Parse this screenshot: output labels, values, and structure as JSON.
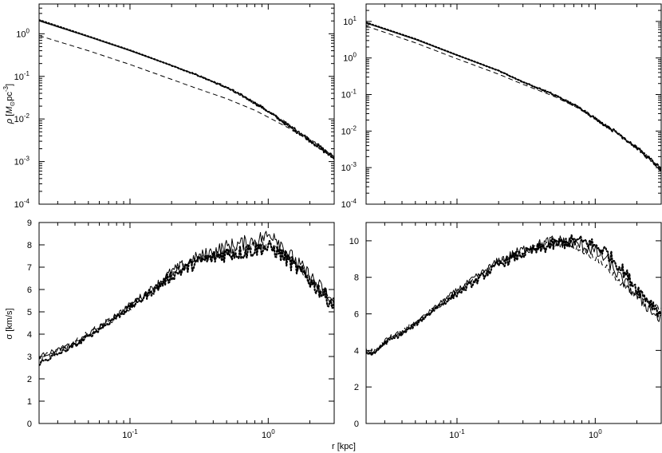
{
  "figure": {
    "xlabel": "r [kpc]"
  },
  "chart_data": [
    {
      "panel": "top-left",
      "type": "line",
      "xscale": "log",
      "yscale": "log",
      "xlim": [
        0.022,
        3.0
      ],
      "ylim": [
        0.0001,
        5
      ],
      "ylabel": "ρ [M⊙pc⁻³]",
      "ylabel_parts": {
        "rho": "ρ",
        "open": " [",
        "M": "M",
        "sun": "⊙",
        "pc": "pc",
        "exp": "-3",
        "close": "]"
      },
      "y_ticks": [
        {
          "value": 1,
          "base": "10",
          "exp": "0"
        },
        {
          "value": 0.1,
          "base": "10",
          "exp": "-1"
        },
        {
          "value": 0.01,
          "base": "10",
          "exp": "-2"
        },
        {
          "value": 0.001,
          "base": "10",
          "exp": "-3"
        },
        {
          "value": 0.0001,
          "base": "10",
          "exp": "-4"
        }
      ],
      "x_ticks": [],
      "series": [
        {
          "style": "solid",
          "x": [
            0.022,
            0.05,
            0.1,
            0.2,
            0.3,
            0.5,
            0.8,
            1.0,
            1.5,
            2.0,
            3.0
          ],
          "y": [
            2.0,
            0.85,
            0.4,
            0.18,
            0.11,
            0.055,
            0.024,
            0.015,
            0.006,
            0.0032,
            0.0012
          ]
        },
        {
          "style": "dotted",
          "x": [
            0.022,
            0.05,
            0.1,
            0.2,
            0.3,
            0.5,
            0.8,
            1.0,
            1.5,
            2.0,
            3.0
          ],
          "y": [
            2.1,
            0.87,
            0.41,
            0.18,
            0.11,
            0.055,
            0.024,
            0.015,
            0.006,
            0.0032,
            0.0012
          ]
        },
        {
          "style": "dashed",
          "x": [
            0.022,
            0.05,
            0.1,
            0.2,
            0.3,
            0.5,
            0.8,
            1.0,
            1.5,
            2.0,
            3.0
          ],
          "y": [
            0.9,
            0.4,
            0.19,
            0.085,
            0.053,
            0.03,
            0.016,
            0.011,
            0.0055,
            0.003,
            0.0012
          ]
        }
      ]
    },
    {
      "panel": "top-right",
      "type": "line",
      "xscale": "log",
      "yscale": "log",
      "xlim": [
        0.022,
        3.0
      ],
      "ylim": [
        0.0001,
        30
      ],
      "ylabel": "",
      "y_ticks": [
        {
          "value": 10,
          "base": "10",
          "exp": "1"
        },
        {
          "value": 1,
          "base": "10",
          "exp": "0"
        },
        {
          "value": 0.1,
          "base": "10",
          "exp": "-1"
        },
        {
          "value": 0.01,
          "base": "10",
          "exp": "-2"
        },
        {
          "value": 0.001,
          "base": "10",
          "exp": "-3"
        },
        {
          "value": 0.0001,
          "base": "10",
          "exp": "-4"
        }
      ],
      "x_ticks": [],
      "series": [
        {
          "style": "solid",
          "x": [
            0.022,
            0.05,
            0.1,
            0.2,
            0.3,
            0.5,
            0.8,
            1.0,
            1.5,
            2.0,
            3.0
          ],
          "y": [
            9.0,
            3.2,
            1.2,
            0.45,
            0.22,
            0.1,
            0.04,
            0.022,
            0.008,
            0.0035,
            0.0009
          ]
        },
        {
          "style": "dotted",
          "x": [
            0.022,
            0.05,
            0.1,
            0.2,
            0.3,
            0.5,
            0.8,
            1.0,
            1.5,
            2.0,
            3.0
          ],
          "y": [
            9.3,
            3.3,
            1.2,
            0.45,
            0.22,
            0.1,
            0.04,
            0.022,
            0.008,
            0.0035,
            0.0009
          ]
        },
        {
          "style": "dashed",
          "x": [
            0.022,
            0.05,
            0.1,
            0.2,
            0.3,
            0.5,
            0.8,
            1.0,
            1.5,
            2.0,
            3.0
          ],
          "y": [
            7.5,
            2.6,
            0.95,
            0.36,
            0.19,
            0.09,
            0.038,
            0.021,
            0.008,
            0.0035,
            0.0009
          ]
        }
      ]
    },
    {
      "panel": "bottom-left",
      "type": "line",
      "xscale": "log",
      "yscale": "linear",
      "xlim": [
        0.022,
        3.0
      ],
      "ylim": [
        0,
        9
      ],
      "ylabel": "σ [km/s]",
      "y_ticks": [
        {
          "value": 0,
          "label": "0"
        },
        {
          "value": 1,
          "label": "1"
        },
        {
          "value": 2,
          "label": "2"
        },
        {
          "value": 3,
          "label": "3"
        },
        {
          "value": 4,
          "label": "4"
        },
        {
          "value": 5,
          "label": "5"
        },
        {
          "value": 6,
          "label": "6"
        },
        {
          "value": 7,
          "label": "7"
        },
        {
          "value": 8,
          "label": "8"
        },
        {
          "value": 9,
          "label": "9"
        }
      ],
      "x_ticks": [
        {
          "value": 0.1,
          "base": "10",
          "exp": "-1"
        },
        {
          "value": 1,
          "base": "10",
          "exp": "0"
        }
      ],
      "series": [
        {
          "style": "solid",
          "x": [
            0.022,
            0.03,
            0.04,
            0.05,
            0.07,
            0.1,
            0.15,
            0.2,
            0.3,
            0.5,
            0.7,
            0.9,
            1.1,
            1.4,
            2.0,
            3.0
          ],
          "y": [
            3.0,
            3.3,
            3.6,
            4.0,
            4.6,
            5.3,
            6.1,
            6.8,
            7.4,
            7.9,
            8.1,
            8.3,
            8.5,
            7.6,
            6.6,
            5.4
          ]
        },
        {
          "style": "dotted",
          "x": [
            0.022,
            0.03,
            0.04,
            0.05,
            0.07,
            0.1,
            0.15,
            0.2,
            0.3,
            0.5,
            0.7,
            0.9,
            1.1,
            1.4,
            2.0,
            3.0
          ],
          "y": [
            2.7,
            3.1,
            3.5,
            3.9,
            4.5,
            5.2,
            6.0,
            6.6,
            7.2,
            7.6,
            7.7,
            7.9,
            7.8,
            7.3,
            6.4,
            5.3
          ]
        },
        {
          "style": "dashed",
          "x": [
            0.022,
            0.03,
            0.04,
            0.05,
            0.07,
            0.1,
            0.15,
            0.2,
            0.3,
            0.5,
            0.7,
            0.9,
            1.1,
            1.4,
            2.0,
            3.0
          ],
          "y": [
            2.9,
            3.2,
            3.6,
            4.0,
            4.6,
            5.2,
            6.0,
            6.7,
            7.3,
            7.7,
            7.9,
            8.0,
            7.9,
            7.4,
            6.5,
            5.3
          ]
        }
      ]
    },
    {
      "panel": "bottom-right",
      "type": "line",
      "xscale": "log",
      "yscale": "linear",
      "xlim": [
        0.022,
        3.0
      ],
      "ylim": [
        0,
        11
      ],
      "ylabel": "",
      "y_ticks": [
        {
          "value": 0,
          "label": "0"
        },
        {
          "value": 2,
          "label": "2"
        },
        {
          "value": 4,
          "label": "4"
        },
        {
          "value": 6,
          "label": "6"
        },
        {
          "value": 8,
          "label": "8"
        },
        {
          "value": 10,
          "label": "10"
        }
      ],
      "x_ticks": [
        {
          "value": 0.1,
          "base": "10",
          "exp": "-1"
        },
        {
          "value": 1,
          "base": "10",
          "exp": "0"
        }
      ],
      "series": [
        {
          "style": "solid",
          "x": [
            0.022,
            0.025,
            0.03,
            0.04,
            0.05,
            0.07,
            0.1,
            0.15,
            0.2,
            0.3,
            0.5,
            0.7,
            0.9,
            1.2,
            1.5,
            2.0,
            3.0
          ],
          "y": [
            3.9,
            3.8,
            4.5,
            5.0,
            5.5,
            6.4,
            7.3,
            8.2,
            8.9,
            9.5,
            10.0,
            9.9,
            9.6,
            9.0,
            8.0,
            7.0,
            5.6
          ]
        },
        {
          "style": "dotted",
          "x": [
            0.022,
            0.025,
            0.03,
            0.04,
            0.05,
            0.07,
            0.1,
            0.15,
            0.2,
            0.3,
            0.5,
            0.7,
            0.9,
            1.2,
            1.5,
            2.0,
            3.0
          ],
          "y": [
            3.9,
            3.8,
            4.4,
            4.9,
            5.4,
            6.3,
            7.1,
            8.0,
            8.7,
            9.3,
            9.8,
            10.0,
            9.9,
            9.4,
            8.6,
            7.4,
            6.0
          ]
        },
        {
          "style": "dashed",
          "x": [
            0.022,
            0.025,
            0.03,
            0.04,
            0.05,
            0.07,
            0.1,
            0.15,
            0.2,
            0.3,
            0.5,
            0.7,
            0.9,
            1.2,
            1.5,
            2.0,
            3.0
          ],
          "y": [
            4.0,
            3.9,
            4.5,
            5.0,
            5.5,
            6.3,
            7.2,
            8.1,
            8.8,
            9.4,
            9.9,
            9.7,
            9.3,
            8.6,
            7.7,
            7.0,
            6.3
          ]
        }
      ]
    }
  ]
}
